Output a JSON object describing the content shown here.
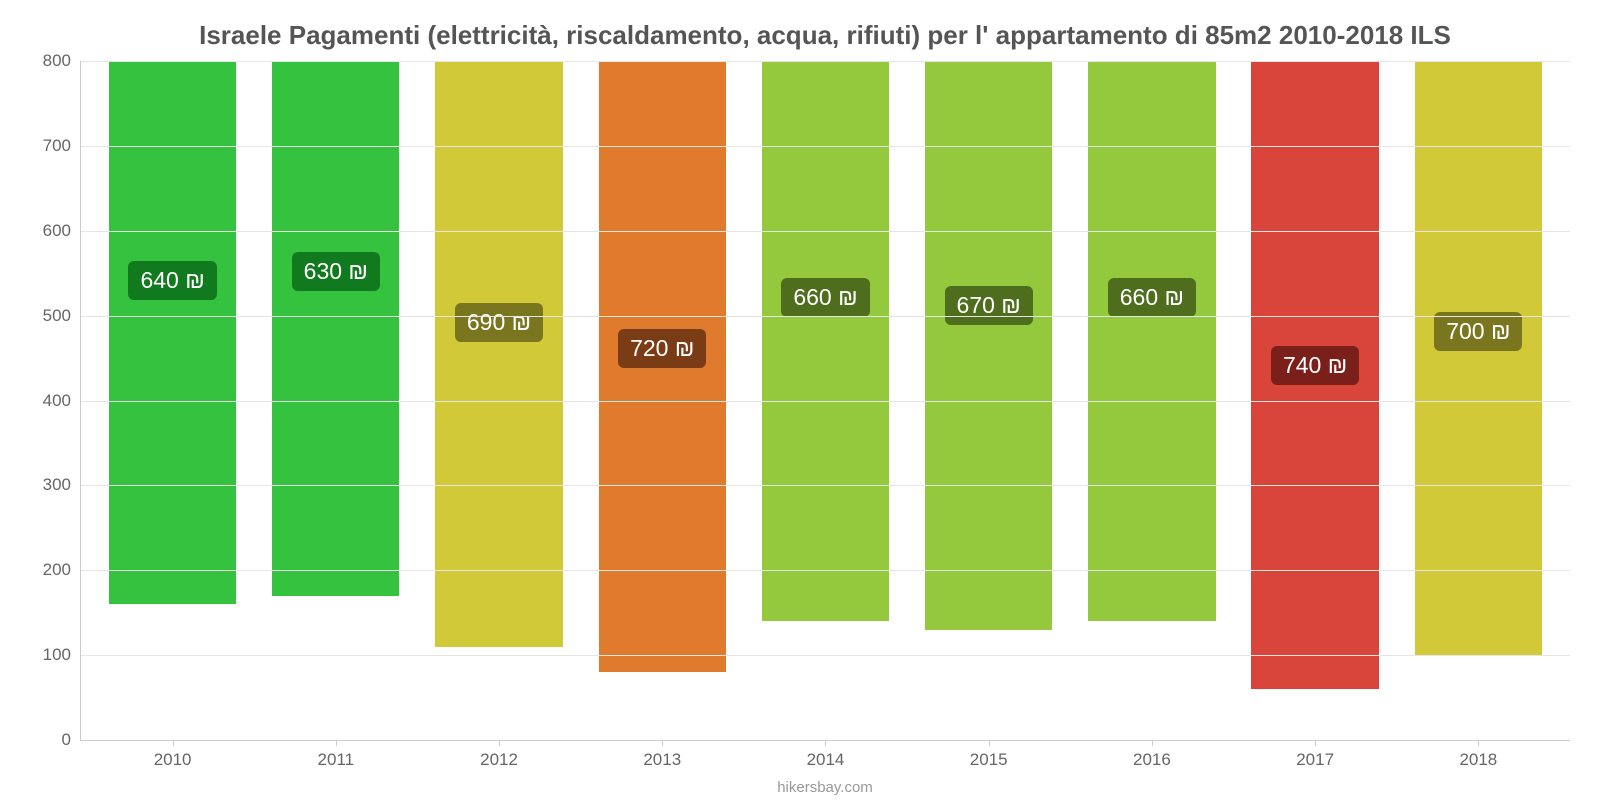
{
  "chart": {
    "type": "bar",
    "title": "Israele Pagamenti (elettricità, riscaldamento, acqua, rifiuti) per l' appartamento di 85m2 2010-2018 ILS",
    "title_fontsize": 26,
    "title_color": "#555555",
    "background_color": "#ffffff",
    "grid_color": "#e5e5e5",
    "axis_color": "#cccccc",
    "tick_label_color": "#666666",
    "tick_label_fontsize": 17,
    "value_label_fontsize": 23,
    "ylim": [
      0,
      800
    ],
    "ytick_step": 100,
    "yticks": [
      "0",
      "100",
      "200",
      "300",
      "400",
      "500",
      "600",
      "700",
      "800"
    ],
    "categories": [
      "2010",
      "2011",
      "2012",
      "2013",
      "2014",
      "2015",
      "2016",
      "2017",
      "2018"
    ],
    "values": [
      640,
      630,
      690,
      720,
      660,
      670,
      660,
      740,
      700
    ],
    "value_labels": [
      "640 ₪",
      "630 ₪",
      "690 ₪",
      "720 ₪",
      "660 ₪",
      "670 ₪",
      "660 ₪",
      "740 ₪",
      "700 ₪"
    ],
    "bar_colors": [
      "#35c23e",
      "#35c23e",
      "#d1c938",
      "#e07a2c",
      "#94c93d",
      "#94c93d",
      "#94c93d",
      "#d9453a",
      "#d1c938"
    ],
    "badge_colors": [
      "#117a1e",
      "#117a1e",
      "#7a7620",
      "#7a3c14",
      "#4e6e1e",
      "#4e6e1e",
      "#4e6e1e",
      "#7a1f1a",
      "#7a7620"
    ],
    "bar_width": 0.78,
    "badge_y_value": 380,
    "footer": "hikersbay.com",
    "footer_color": "#999999",
    "footer_fontsize": 15
  }
}
